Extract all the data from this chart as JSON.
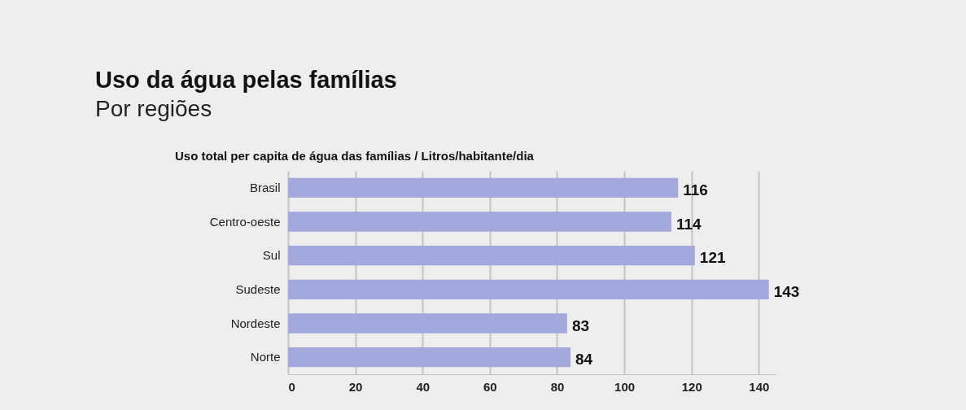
{
  "chart_data": {
    "type": "bar",
    "orientation": "horizontal",
    "title": "Uso da água pelas famílias",
    "subtitle": "Por regiões",
    "annotations": [
      "Uso total per capita de água das famílias  / Litros/habitante/dia"
    ],
    "categories": [
      "Brasil",
      "Centro-oeste",
      "Sul",
      "Sudeste",
      "Nordeste",
      "Norte"
    ],
    "values": [
      116,
      114,
      121,
      143,
      83,
      84
    ],
    "color": "#a3a9dc",
    "data_labels": true,
    "xlim": [
      0,
      145
    ],
    "xticks": [
      0,
      20,
      40,
      60,
      80,
      100,
      120,
      140
    ],
    "grid": "x"
  }
}
